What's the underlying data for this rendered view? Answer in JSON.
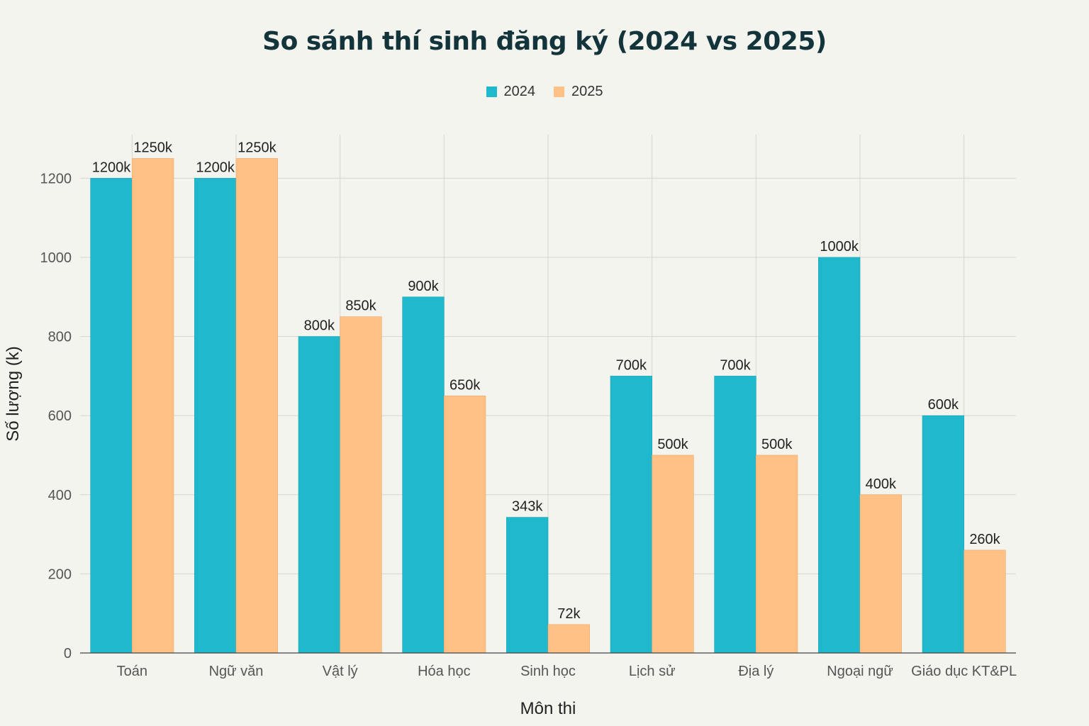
{
  "chart_data": {
    "type": "bar",
    "title": "So sánh thí sinh đăng ký (2024 vs 2025)",
    "xlabel": "Môn thi",
    "ylabel": "Số lượng (k)",
    "categories": [
      "Toán",
      "Ngữ văn",
      "Vật lý",
      "Hóa học",
      "Sinh học",
      "Lịch sử",
      "Địa lý",
      "Ngoại ngữ",
      "Giáo dục KT&PL"
    ],
    "series": [
      {
        "name": "2024",
        "color": "#1fb8cd",
        "values": [
          1200,
          1200,
          800,
          900,
          343,
          700,
          700,
          1000,
          600
        ],
        "labels": [
          "1200k",
          "1200k",
          "800k",
          "900k",
          "343k",
          "700k",
          "700k",
          "1000k",
          "600k"
        ]
      },
      {
        "name": "2025",
        "color": "#ffc185",
        "values": [
          1250,
          1250,
          850,
          650,
          72,
          500,
          500,
          400,
          260
        ],
        "labels": [
          "1250k",
          "1250k",
          "850k",
          "650k",
          "72k",
          "500k",
          "500k",
          "400k",
          "260k"
        ]
      }
    ],
    "yticks": [
      0,
      200,
      400,
      600,
      800,
      1000,
      1200
    ],
    "ylim": [
      0,
      1310
    ],
    "grid": true,
    "legend_position": "top-center"
  }
}
